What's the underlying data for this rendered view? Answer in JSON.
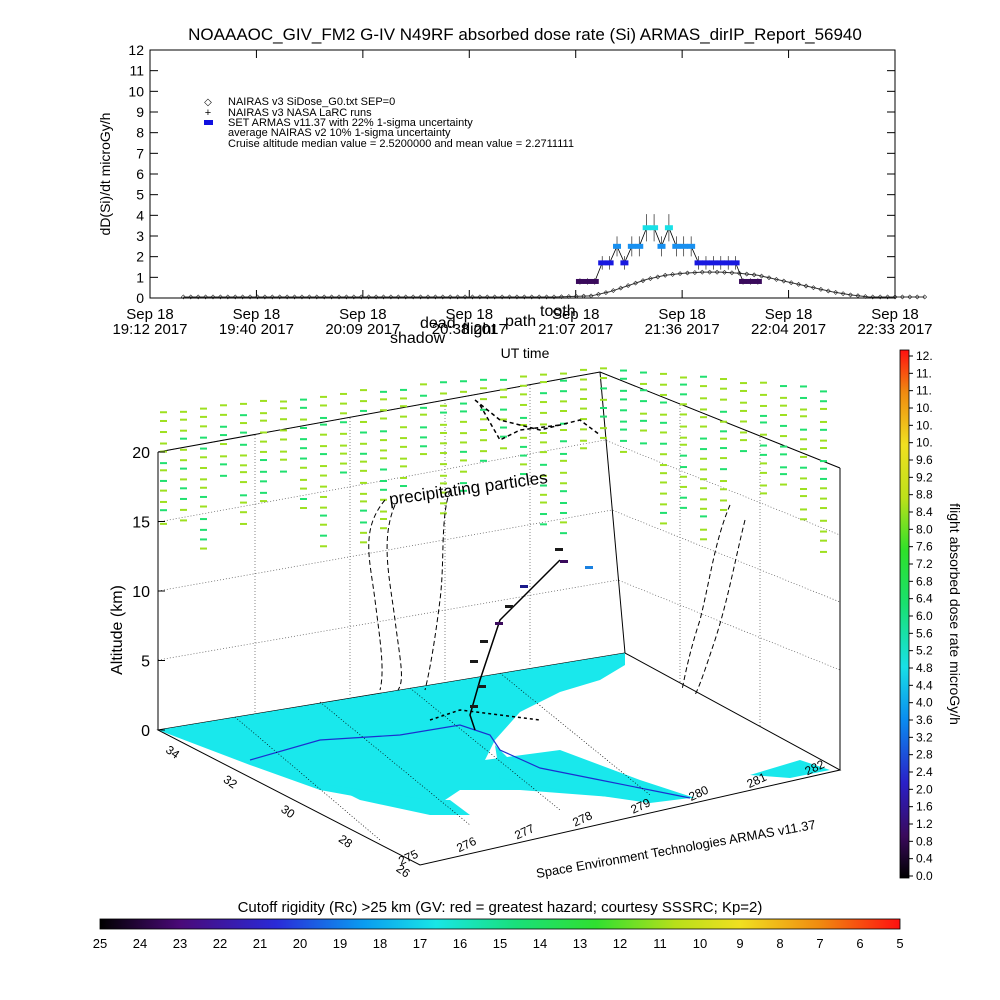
{
  "title": "NOAAAOC_GIV_FM2 G-IV    N49RF  absorbed dose rate (Si) ARMAS_dirIP_Report_56940",
  "chart_data": [
    {
      "type": "scatter",
      "ylabel": "dD(Si)/dt microGy/h",
      "xlabel": "UT time",
      "ylim": [
        0,
        12
      ],
      "yticks": [
        0,
        1,
        2,
        3,
        4,
        5,
        6,
        7,
        8,
        9,
        10,
        11,
        12
      ],
      "xticks": [
        {
          "date": "Sep 18",
          "time": "19:12 2017"
        },
        {
          "date": "Sep 18",
          "time": "19:40 2017"
        },
        {
          "date": "Sep 18",
          "time": "20:09 2017"
        },
        {
          "date": "Sep 18",
          "time": "20:38 2017"
        },
        {
          "date": "Sep 18",
          "time": "21:07 2017"
        },
        {
          "date": "Sep 18",
          "time": "21:36 2017"
        },
        {
          "date": "Sep 18",
          "time": "22:04 2017"
        },
        {
          "date": "Sep 18",
          "time": "22:33 2017"
        }
      ],
      "legend": {
        "placement": "top-left",
        "entries": [
          "NAIRAS v3 SiDose_G0.txt SEP=0",
          "NAIRAS v3 NASA LaRC runs",
          "SET ARMAS v11.37 with 22% 1-sigma uncertainty",
          "average NAIRAS v2 10% 1-sigma uncertainty",
          "Cruise altitude median value = 2.5200000 and mean value = 2.2711111"
        ]
      },
      "series": [
        {
          "name": "NAIRAS v3 SiDose_G0.txt SEP=0",
          "x_minutes_from_first_tick": [
            0,
            10,
            20,
            30,
            40,
            50,
            60,
            70,
            80,
            90,
            100,
            110,
            115,
            120,
            125,
            130,
            135,
            140,
            145,
            150,
            155,
            160,
            165,
            170,
            175,
            180,
            185,
            190,
            195,
            200
          ],
          "values": [
            0.05,
            0.05,
            0.05,
            0.05,
            0.05,
            0.05,
            0.05,
            0.05,
            0.05,
            0.05,
            0.05,
            0.1,
            0.3,
            0.6,
            0.9,
            1.1,
            1.2,
            1.25,
            1.25,
            1.2,
            1.1,
            0.9,
            0.7,
            0.5,
            0.3,
            0.15,
            0.05,
            0.05,
            0.05,
            0.05
          ]
        },
        {
          "name": "SET ARMAS v11.37 with 22% 1-sigma uncertainty",
          "points": [
            {
              "t": "21:08",
              "v": 0.8
            },
            {
              "t": "21:10",
              "v": 0.8
            },
            {
              "t": "21:12",
              "v": 0.8
            },
            {
              "t": "21:14",
              "v": 1.7
            },
            {
              "t": "21:16",
              "v": 1.7
            },
            {
              "t": "21:18",
              "v": 2.5
            },
            {
              "t": "21:20",
              "v": 1.7
            },
            {
              "t": "21:22",
              "v": 2.5
            },
            {
              "t": "21:24",
              "v": 2.5
            },
            {
              "t": "21:26",
              "v": 3.4
            },
            {
              "t": "21:28",
              "v": 3.4
            },
            {
              "t": "21:30",
              "v": 2.5
            },
            {
              "t": "21:32",
              "v": 3.4
            },
            {
              "t": "21:34",
              "v": 2.5
            },
            {
              "t": "21:36",
              "v": 2.5
            },
            {
              "t": "21:38",
              "v": 2.5
            },
            {
              "t": "21:40",
              "v": 1.7
            },
            {
              "t": "21:42",
              "v": 1.7
            },
            {
              "t": "21:44",
              "v": 1.7
            },
            {
              "t": "21:46",
              "v": 1.7
            },
            {
              "t": "21:48",
              "v": 1.7
            },
            {
              "t": "21:50",
              "v": 1.7
            },
            {
              "t": "21:52",
              "v": 0.8
            },
            {
              "t": "21:54",
              "v": 0.8
            },
            {
              "t": "21:56",
              "v": 0.8
            }
          ]
        }
      ]
    },
    {
      "type": "scatter",
      "zlabel": "Altitude (km)",
      "zticks": [
        0,
        5,
        10,
        15,
        20
      ],
      "lat_ticks": [
        34,
        32,
        30,
        28,
        26
      ],
      "lon_ticks": [
        275,
        276,
        277,
        278,
        279,
        280,
        281,
        282
      ],
      "annotations": [
        "precipitating particles",
        "shadow",
        "dead",
        "tooth",
        "flight",
        "path"
      ],
      "credit": "Space Environment Technologies ARMAS v11.37"
    },
    {
      "type": "heatmap",
      "name": "dose-colorbar",
      "label": "flight absorbed dose rate microGy/h",
      "ticks": [
        "12.",
        "11.",
        "11.",
        "10.",
        "10.",
        "10.",
        "9.6",
        "9.2",
        "8.8",
        "8.4",
        "8.0",
        "7.6",
        "7.2",
        "6.8",
        "6.4",
        "6.0",
        "5.6",
        "5.2",
        "4.8",
        "4.4",
        "4.0",
        "3.6",
        "3.2",
        "2.8",
        "2.4",
        "2.0",
        "1.6",
        "1.2",
        "0.8",
        "0.4",
        "0.0"
      ]
    },
    {
      "type": "heatmap",
      "name": "cutoff-colorbar",
      "label": "Cutoff rigidity (Rc) >25 km (GV: red = greatest hazard; courtesy SSSRC; Kp=2)",
      "ticks": [
        "25",
        "24",
        "23",
        "22",
        "21",
        "20",
        "19",
        "18",
        "17",
        "16",
        "15",
        "14",
        "13",
        "12",
        "11",
        "10",
        "9",
        "8",
        "7",
        "6",
        "5"
      ]
    }
  ]
}
